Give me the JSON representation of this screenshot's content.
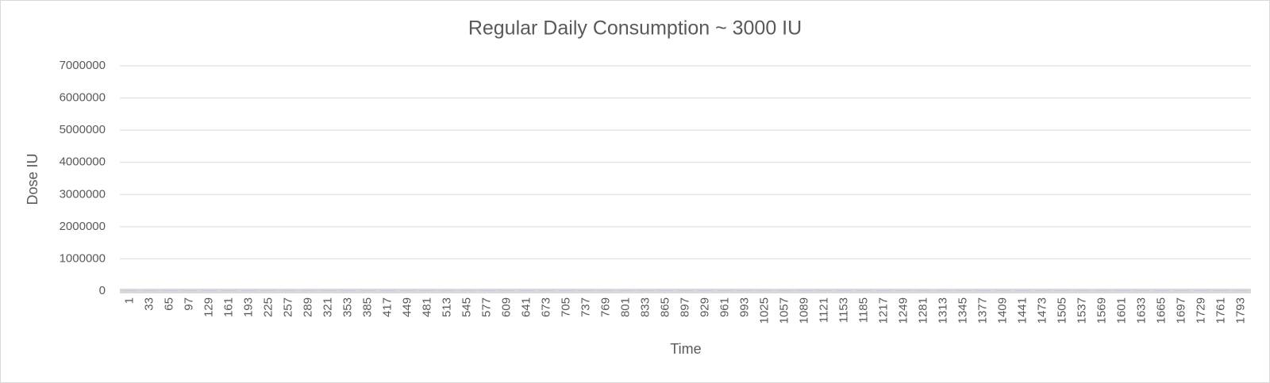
{
  "chart_data": {
    "type": "bar",
    "title": "Regular Daily Consumption ~ 3000 IU",
    "x_label": "Time",
    "y_label": "Dose IU",
    "categories": [
      "1",
      "33",
      "65",
      "97",
      "129",
      "161",
      "193",
      "225",
      "257",
      "289",
      "321",
      "353",
      "385",
      "417",
      "449",
      "481",
      "513",
      "545",
      "577",
      "609",
      "641",
      "673",
      "705",
      "737",
      "769",
      "801",
      "833",
      "865",
      "897",
      "929",
      "961",
      "993",
      "1025",
      "1057",
      "1089",
      "1121",
      "1153",
      "1185",
      "1217",
      "1249",
      "1281",
      "1313",
      "1345",
      "1377",
      "1409",
      "1441",
      "1473",
      "1505",
      "1537",
      "1569",
      "1601",
      "1633",
      "1665",
      "1697",
      "1729",
      "1761",
      "1793"
    ],
    "values": [
      3000,
      3000,
      3000,
      3000,
      3000,
      3000,
      3000,
      3000,
      3000,
      3000,
      3000,
      3000,
      3000,
      3000,
      3000,
      3000,
      3000,
      3000,
      3000,
      3000,
      3000,
      3000,
      3000,
      3000,
      3000,
      3000,
      3000,
      3000,
      3000,
      3000,
      3000,
      3000,
      3000,
      3000,
      3000,
      3000,
      3000,
      3000,
      3000,
      3000,
      3000,
      3000,
      3000,
      3000,
      3000,
      3000,
      3000,
      3000,
      3000,
      3000,
      3000,
      3000,
      3000,
      3000,
      3000,
      3000,
      3000
    ],
    "color": "#4472c4",
    "ylim": [
      0,
      7000000
    ],
    "yticks": [
      0,
      1000000,
      2000000,
      3000000,
      4000000,
      5000000,
      6000000,
      7000000
    ],
    "grid": true
  }
}
